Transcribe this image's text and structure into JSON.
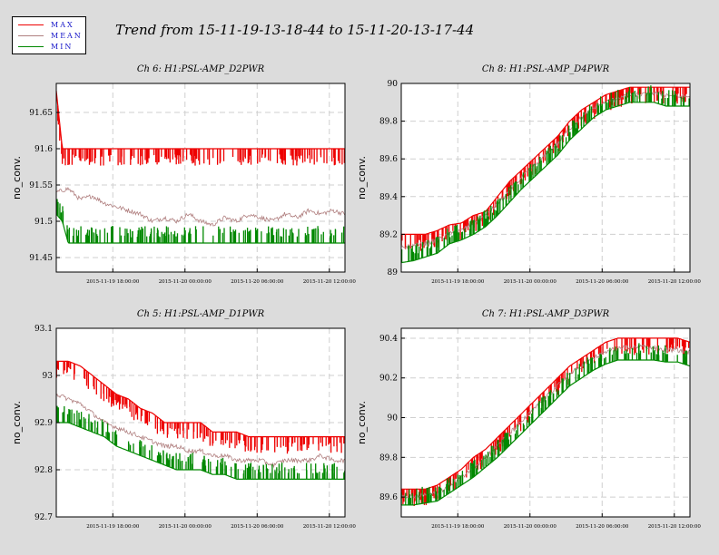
{
  "title": "Trend from 15-11-19-13-18-44 to 15-11-20-13-17-44",
  "legend": [
    {
      "label": "MAX",
      "color": "#ee0000"
    },
    {
      "label": "MEAN",
      "color": "#b07f7f"
    },
    {
      "label": "MIN",
      "color": "#008800"
    }
  ],
  "colors": {
    "max": "#ee0000",
    "mean": "#b07f7f",
    "min": "#008800",
    "grid": "#cfcfcf"
  },
  "chart_data": [
    {
      "type": "line",
      "title": "Ch 6: H1:PSL-AMP_D2PWR",
      "ylabel": "no_conv.",
      "ylim": [
        91.43,
        91.69
      ],
      "yticks": [
        "91.45",
        "91.5",
        "91.55",
        "91.6",
        "91.65"
      ],
      "xlim_hours": [
        0,
        24
      ],
      "xticks": [
        "2015-11-19 18:00:00",
        "2015-11-20 00:00:00",
        "2015-11-20 06:00:00",
        "2015-11-20 12:00:00"
      ],
      "grid": true,
      "series": [
        {
          "name": "MAX",
          "x": [
            0,
            0.5,
            1,
            2,
            4,
            6,
            8,
            10,
            12,
            14,
            16,
            18,
            20,
            22,
            24
          ],
          "values": [
            91.68,
            91.6,
            91.6,
            91.6,
            91.6,
            91.6,
            91.6,
            91.6,
            91.6,
            91.6,
            91.6,
            91.6,
            91.6,
            91.6,
            91.6
          ]
        },
        {
          "name": "MEAN",
          "x": [
            0,
            1,
            2,
            3,
            4,
            5,
            6,
            7,
            8,
            9,
            10,
            11,
            12,
            13,
            14,
            15,
            16,
            17,
            18,
            19,
            20,
            21,
            22,
            23,
            24
          ],
          "values": [
            91.54,
            91.545,
            91.53,
            91.535,
            91.525,
            91.52,
            91.515,
            91.51,
            91.5,
            91.505,
            91.5,
            91.51,
            91.5,
            91.495,
            91.505,
            91.5,
            91.51,
            91.505,
            91.5,
            91.51,
            91.505,
            91.515,
            91.51,
            91.515,
            91.51
          ]
        },
        {
          "name": "MIN",
          "x": [
            0,
            0.5,
            1,
            2,
            3,
            4,
            6,
            8,
            10,
            12,
            14,
            16,
            18,
            20,
            22,
            24
          ],
          "values": [
            91.51,
            91.5,
            91.47,
            91.47,
            91.47,
            91.47,
            91.47,
            91.47,
            91.47,
            91.47,
            91.47,
            91.47,
            91.47,
            91.47,
            91.47,
            91.47
          ]
        }
      ]
    },
    {
      "type": "line",
      "title": "Ch 8: H1:PSL-AMP_D4PWR",
      "ylabel": "no_conv.",
      "ylim": [
        89.0,
        90.0
      ],
      "yticks": [
        "89",
        "89.2",
        "89.4",
        "89.6",
        "89.8",
        "90"
      ],
      "xlim_hours": [
        0,
        24
      ],
      "xticks": [
        "2015-11-19 18:00:00",
        "2015-11-20 00:00:00",
        "2015-11-20 06:00:00",
        "2015-11-20 12:00:00"
      ],
      "grid": true,
      "series": [
        {
          "name": "MAX",
          "x": [
            0,
            1,
            2,
            3,
            4,
            5,
            6,
            7,
            8,
            9,
            10,
            11,
            12,
            13,
            14,
            15,
            16,
            17,
            18,
            19,
            20,
            21,
            22,
            23,
            24
          ],
          "values": [
            89.2,
            89.2,
            89.2,
            89.22,
            89.25,
            89.26,
            89.3,
            89.32,
            89.4,
            89.48,
            89.54,
            89.6,
            89.66,
            89.72,
            89.8,
            89.86,
            89.9,
            89.94,
            89.96,
            89.98,
            89.98,
            89.98,
            89.98,
            89.98,
            89.98
          ]
        },
        {
          "name": "MEAN",
          "x": [
            0,
            1,
            2,
            3,
            4,
            5,
            6,
            7,
            8,
            9,
            10,
            11,
            12,
            13,
            14,
            15,
            16,
            17,
            18,
            19,
            20,
            21,
            22,
            23,
            24
          ],
          "values": [
            89.13,
            89.14,
            89.15,
            89.17,
            89.2,
            89.22,
            89.26,
            89.3,
            89.36,
            89.43,
            89.5,
            89.56,
            89.62,
            89.68,
            89.76,
            89.82,
            89.87,
            89.9,
            89.92,
            89.94,
            89.94,
            89.95,
            89.94,
            89.93,
            89.93
          ]
        },
        {
          "name": "MIN",
          "x": [
            0,
            1,
            2,
            3,
            4,
            5,
            6,
            7,
            8,
            9,
            10,
            11,
            12,
            13,
            14,
            15,
            16,
            17,
            18,
            19,
            20,
            21,
            22,
            23,
            24
          ],
          "values": [
            89.05,
            89.06,
            89.08,
            89.1,
            89.15,
            89.17,
            89.2,
            89.24,
            89.3,
            89.37,
            89.44,
            89.5,
            89.56,
            89.62,
            89.7,
            89.76,
            89.82,
            89.86,
            89.88,
            89.9,
            89.9,
            89.9,
            89.88,
            89.88,
            89.88
          ]
        }
      ]
    },
    {
      "type": "line",
      "title": "Ch 5: H1:PSL-AMP_D1PWR",
      "ylabel": "no_conv.",
      "ylim": [
        92.7,
        93.1
      ],
      "yticks": [
        "92.7",
        "92.8",
        "92.9",
        "93",
        "93.1"
      ],
      "xlim_hours": [
        0,
        24
      ],
      "xticks": [
        "2015-11-19 18:00:00",
        "2015-11-20 00:00:00",
        "2015-11-20 06:00:00",
        "2015-11-20 12:00:00"
      ],
      "grid": true,
      "series": [
        {
          "name": "MAX",
          "x": [
            0,
            1,
            2,
            3,
            4,
            5,
            6,
            7,
            8,
            9,
            10,
            11,
            12,
            13,
            14,
            15,
            16,
            17,
            18,
            19,
            20,
            21,
            22,
            23,
            24
          ],
          "values": [
            93.03,
            93.03,
            93.02,
            93.0,
            92.98,
            92.96,
            92.95,
            92.93,
            92.92,
            92.9,
            92.9,
            92.9,
            92.9,
            92.88,
            92.88,
            92.88,
            92.87,
            92.87,
            92.87,
            92.87,
            92.87,
            92.87,
            92.87,
            92.87,
            92.87
          ]
        },
        {
          "name": "MEAN",
          "x": [
            0,
            1,
            2,
            3,
            4,
            5,
            6,
            7,
            8,
            9,
            10,
            11,
            12,
            13,
            14,
            15,
            16,
            17,
            18,
            19,
            20,
            21,
            22,
            23,
            24
          ],
          "values": [
            92.96,
            92.95,
            92.94,
            92.92,
            92.9,
            92.89,
            92.88,
            92.87,
            92.86,
            92.85,
            92.85,
            92.84,
            92.84,
            92.83,
            92.83,
            92.82,
            92.82,
            92.82,
            92.81,
            92.82,
            92.82,
            92.82,
            92.83,
            92.82,
            92.82
          ]
        },
        {
          "name": "MIN",
          "x": [
            0,
            1,
            2,
            3,
            4,
            5,
            6,
            7,
            8,
            9,
            10,
            11,
            12,
            13,
            14,
            15,
            16,
            17,
            18,
            19,
            20,
            21,
            22,
            23,
            24
          ],
          "values": [
            92.9,
            92.9,
            92.89,
            92.88,
            92.87,
            92.85,
            92.84,
            92.83,
            92.82,
            92.81,
            92.8,
            92.8,
            92.8,
            92.79,
            92.79,
            92.78,
            92.78,
            92.78,
            92.78,
            92.78,
            92.78,
            92.78,
            92.78,
            92.78,
            92.78
          ]
        }
      ]
    },
    {
      "type": "line",
      "title": "Ch 7: H1:PSL-AMP_D3PWR",
      "ylabel": "no_conv.",
      "ylim": [
        89.5,
        90.45
      ],
      "yticks": [
        "89.6",
        "89.8",
        "90",
        "90.2",
        "90.4"
      ],
      "xlim_hours": [
        0,
        24
      ],
      "xticks": [
        "2015-11-19 18:00:00",
        "2015-11-20 00:00:00",
        "2015-11-20 06:00:00",
        "2015-11-20 12:00:00"
      ],
      "grid": true,
      "series": [
        {
          "name": "MAX",
          "x": [
            0,
            1,
            2,
            3,
            4,
            5,
            6,
            7,
            8,
            9,
            10,
            11,
            12,
            13,
            14,
            15,
            16,
            17,
            18,
            19,
            20,
            21,
            22,
            23,
            24
          ],
          "values": [
            89.64,
            89.64,
            89.64,
            89.66,
            89.7,
            89.74,
            89.8,
            89.84,
            89.9,
            89.96,
            90.02,
            90.08,
            90.14,
            90.2,
            90.26,
            90.3,
            90.34,
            90.38,
            90.4,
            90.4,
            90.4,
            90.4,
            90.4,
            90.4,
            90.38
          ]
        },
        {
          "name": "MEAN",
          "x": [
            0,
            1,
            2,
            3,
            4,
            5,
            6,
            7,
            8,
            9,
            10,
            11,
            12,
            13,
            14,
            15,
            16,
            17,
            18,
            19,
            20,
            21,
            22,
            23,
            24
          ],
          "values": [
            89.6,
            89.6,
            89.61,
            89.62,
            89.66,
            89.7,
            89.75,
            89.8,
            89.86,
            89.92,
            89.98,
            90.04,
            90.1,
            90.16,
            90.22,
            90.26,
            90.3,
            90.33,
            90.35,
            90.35,
            90.36,
            90.35,
            90.34,
            90.34,
            90.33
          ]
        },
        {
          "name": "MIN",
          "x": [
            0,
            1,
            2,
            3,
            4,
            5,
            6,
            7,
            8,
            9,
            10,
            11,
            12,
            13,
            14,
            15,
            16,
            17,
            18,
            19,
            20,
            21,
            22,
            23,
            24
          ],
          "values": [
            89.56,
            89.56,
            89.57,
            89.58,
            89.62,
            89.66,
            89.7,
            89.75,
            89.8,
            89.86,
            89.92,
            89.98,
            90.04,
            90.1,
            90.16,
            90.2,
            90.24,
            90.27,
            90.29,
            90.29,
            90.29,
            90.29,
            90.28,
            90.28,
            90.26
          ]
        }
      ]
    }
  ]
}
